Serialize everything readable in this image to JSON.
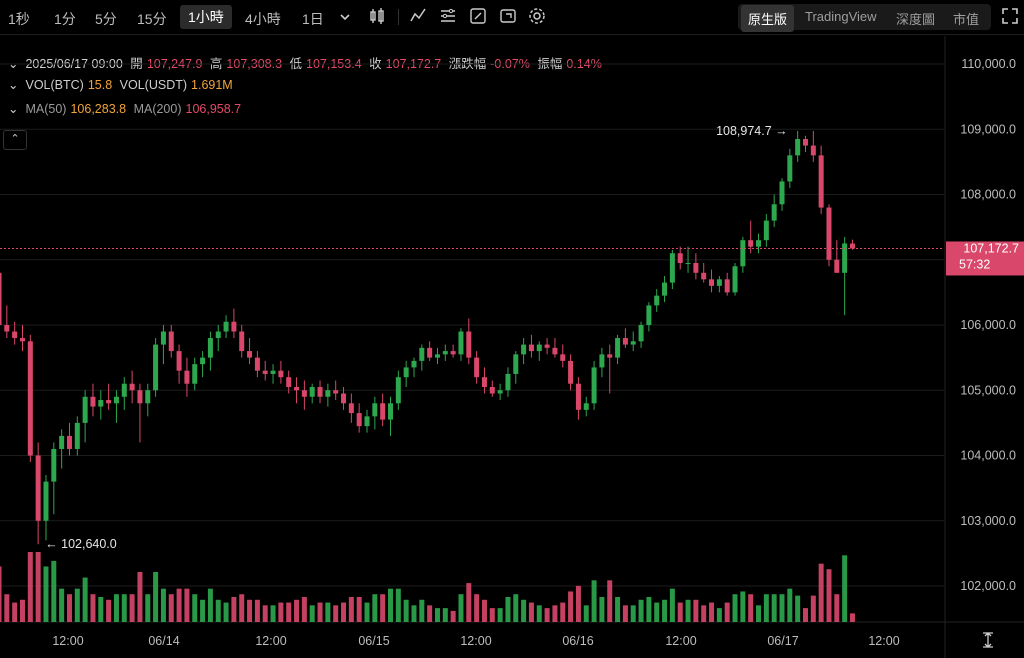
{
  "toolbar": {
    "intervals": [
      "1秒",
      "1分",
      "5分",
      "15分",
      "1小時",
      "4小時",
      "1日"
    ],
    "active_interval": "1小時",
    "views": [
      "原生版",
      "TradingView",
      "深度圖",
      "市值"
    ],
    "active_view": "原生版"
  },
  "info": {
    "datetime": "2025/06/17 09:00",
    "open_label": "開",
    "open": "107,247.9",
    "high_label": "高",
    "high": "107,308.3",
    "low_label": "低",
    "low": "107,153.4",
    "close_label": "收",
    "close": "107,172.7",
    "change_label": "漲跌幅",
    "change": "-0.07%",
    "amp_label": "振幅",
    "amp": "0.14%",
    "vol_btc_label": "VOL(BTC)",
    "vol_btc": "15.8",
    "vol_usdt_label": "VOL(USDT)",
    "vol_usdt": "1.691M",
    "ma50_label": "MA(50)",
    "ma50": "106,283.8",
    "ma200_label": "MA(200)",
    "ma200": "106,958.7"
  },
  "colors": {
    "up": "#2ea84f",
    "down": "#d9486b",
    "bg": "#000000",
    "grid": "#1c1c1c",
    "price_tag": "#d9486b"
  },
  "chart_data": {
    "type": "candlestick",
    "y_ticks": [
      "110,000.0",
      "109,000.0",
      "108,000.0",
      "107,000.0",
      "106,000.0",
      "105,000.0",
      "104,000.0",
      "103,000.0",
      "102,000.0"
    ],
    "y_tick_values": [
      110000,
      109000,
      108000,
      107000,
      106000,
      105000,
      104000,
      103000,
      102000
    ],
    "x_ticks": [
      "12:00",
      "06/14",
      "12:00",
      "06/15",
      "12:00",
      "06/16",
      "12:00",
      "06/17",
      "12:00"
    ],
    "last_price": "107,172.7",
    "countdown": "57:32",
    "max_label": "108,974.7",
    "min_label": "102,640.0",
    "ylim": [
      101700,
      110300
    ],
    "candles": [
      {
        "o": 106800,
        "h": 106900,
        "l": 105900,
        "c": 106000
      },
      {
        "o": 106000,
        "h": 106300,
        "l": 105800,
        "c": 105900
      },
      {
        "o": 105900,
        "h": 106050,
        "l": 105700,
        "c": 105800
      },
      {
        "o": 105800,
        "h": 106000,
        "l": 105600,
        "c": 105750
      },
      {
        "o": 105750,
        "h": 105850,
        "l": 103900,
        "c": 104000
      },
      {
        "o": 104000,
        "h": 104200,
        "l": 102640,
        "c": 103000
      },
      {
        "o": 103000,
        "h": 103700,
        "l": 102700,
        "c": 103600
      },
      {
        "o": 103600,
        "h": 104200,
        "l": 103100,
        "c": 104100
      },
      {
        "o": 104100,
        "h": 104400,
        "l": 103800,
        "c": 104300
      },
      {
        "o": 104300,
        "h": 104500,
        "l": 104000,
        "c": 104100
      },
      {
        "o": 104100,
        "h": 104600,
        "l": 104000,
        "c": 104500
      },
      {
        "o": 104500,
        "h": 105000,
        "l": 104200,
        "c": 104900
      },
      {
        "o": 104900,
        "h": 105100,
        "l": 104600,
        "c": 104750
      },
      {
        "o": 104750,
        "h": 105000,
        "l": 104550,
        "c": 104850
      },
      {
        "o": 104850,
        "h": 105100,
        "l": 104700,
        "c": 104800
      },
      {
        "o": 104800,
        "h": 105000,
        "l": 104500,
        "c": 104900
      },
      {
        "o": 104900,
        "h": 105200,
        "l": 104700,
        "c": 105100
      },
      {
        "o": 105100,
        "h": 105300,
        "l": 104800,
        "c": 105000
      },
      {
        "o": 105000,
        "h": 105100,
        "l": 104200,
        "c": 104800
      },
      {
        "o": 104800,
        "h": 105100,
        "l": 104600,
        "c": 105000
      },
      {
        "o": 105000,
        "h": 105800,
        "l": 104900,
        "c": 105700
      },
      {
        "o": 105700,
        "h": 106000,
        "l": 105400,
        "c": 105900
      },
      {
        "o": 105900,
        "h": 106000,
        "l": 105500,
        "c": 105600
      },
      {
        "o": 105600,
        "h": 105700,
        "l": 105100,
        "c": 105300
      },
      {
        "o": 105300,
        "h": 105500,
        "l": 104900,
        "c": 105100
      },
      {
        "o": 105100,
        "h": 105500,
        "l": 105000,
        "c": 105400
      },
      {
        "o": 105400,
        "h": 105600,
        "l": 105200,
        "c": 105500
      },
      {
        "o": 105500,
        "h": 105900,
        "l": 105300,
        "c": 105800
      },
      {
        "o": 105800,
        "h": 106000,
        "l": 105600,
        "c": 105900
      },
      {
        "o": 105900,
        "h": 106150,
        "l": 105800,
        "c": 106050
      },
      {
        "o": 106050,
        "h": 106250,
        "l": 105800,
        "c": 105900
      },
      {
        "o": 105900,
        "h": 106000,
        "l": 105500,
        "c": 105600
      },
      {
        "o": 105600,
        "h": 105800,
        "l": 105400,
        "c": 105500
      },
      {
        "o": 105500,
        "h": 105600,
        "l": 105200,
        "c": 105300
      },
      {
        "o": 105300,
        "h": 105450,
        "l": 105150,
        "c": 105250
      },
      {
        "o": 105250,
        "h": 105400,
        "l": 105100,
        "c": 105300
      },
      {
        "o": 105300,
        "h": 105450,
        "l": 105100,
        "c": 105200
      },
      {
        "o": 105200,
        "h": 105300,
        "l": 104950,
        "c": 105050
      },
      {
        "o": 105050,
        "h": 105200,
        "l": 104800,
        "c": 105000
      },
      {
        "o": 105000,
        "h": 105150,
        "l": 104700,
        "c": 104900
      },
      {
        "o": 104900,
        "h": 105100,
        "l": 104800,
        "c": 105050
      },
      {
        "o": 105050,
        "h": 105150,
        "l": 104800,
        "c": 104900
      },
      {
        "o": 104900,
        "h": 105100,
        "l": 104750,
        "c": 105000
      },
      {
        "o": 105000,
        "h": 105150,
        "l": 104850,
        "c": 104950
      },
      {
        "o": 104950,
        "h": 105050,
        "l": 104700,
        "c": 104800
      },
      {
        "o": 104800,
        "h": 104950,
        "l": 104500,
        "c": 104650
      },
      {
        "o": 104650,
        "h": 104800,
        "l": 104350,
        "c": 104450
      },
      {
        "o": 104450,
        "h": 104700,
        "l": 104350,
        "c": 104600
      },
      {
        "o": 104600,
        "h": 104900,
        "l": 104400,
        "c": 104800
      },
      {
        "o": 104800,
        "h": 104950,
        "l": 104450,
        "c": 104550
      },
      {
        "o": 104550,
        "h": 104900,
        "l": 104300,
        "c": 104800
      },
      {
        "o": 104800,
        "h": 105300,
        "l": 104700,
        "c": 105200
      },
      {
        "o": 105200,
        "h": 105450,
        "l": 105050,
        "c": 105350
      },
      {
        "o": 105350,
        "h": 105500,
        "l": 105200,
        "c": 105450
      },
      {
        "o": 105450,
        "h": 105700,
        "l": 105300,
        "c": 105650
      },
      {
        "o": 105650,
        "h": 105750,
        "l": 105450,
        "c": 105500
      },
      {
        "o": 105500,
        "h": 105650,
        "l": 105400,
        "c": 105550
      },
      {
        "o": 105550,
        "h": 105700,
        "l": 105450,
        "c": 105600
      },
      {
        "o": 105600,
        "h": 105700,
        "l": 105500,
        "c": 105550
      },
      {
        "o": 105550,
        "h": 105950,
        "l": 105450,
        "c": 105900
      },
      {
        "o": 105900,
        "h": 106100,
        "l": 105400,
        "c": 105500
      },
      {
        "o": 105500,
        "h": 105600,
        "l": 105100,
        "c": 105200
      },
      {
        "o": 105200,
        "h": 105350,
        "l": 104950,
        "c": 105050
      },
      {
        "o": 105050,
        "h": 105150,
        "l": 104900,
        "c": 104950
      },
      {
        "o": 104950,
        "h": 105100,
        "l": 104850,
        "c": 105000
      },
      {
        "o": 105000,
        "h": 105350,
        "l": 104900,
        "c": 105250
      },
      {
        "o": 105250,
        "h": 105600,
        "l": 105100,
        "c": 105550
      },
      {
        "o": 105550,
        "h": 105800,
        "l": 105400,
        "c": 105700
      },
      {
        "o": 105700,
        "h": 105850,
        "l": 105500,
        "c": 105600
      },
      {
        "o": 105600,
        "h": 105750,
        "l": 105450,
        "c": 105700
      },
      {
        "o": 105700,
        "h": 105800,
        "l": 105550,
        "c": 105650
      },
      {
        "o": 105650,
        "h": 105800,
        "l": 105500,
        "c": 105550
      },
      {
        "o": 105550,
        "h": 105700,
        "l": 105350,
        "c": 105450
      },
      {
        "o": 105450,
        "h": 105550,
        "l": 105000,
        "c": 105100
      },
      {
        "o": 105100,
        "h": 105200,
        "l": 104550,
        "c": 104700
      },
      {
        "o": 104700,
        "h": 104900,
        "l": 104600,
        "c": 104800
      },
      {
        "o": 104800,
        "h": 105450,
        "l": 104700,
        "c": 105350
      },
      {
        "o": 105350,
        "h": 105650,
        "l": 105200,
        "c": 105550
      },
      {
        "o": 105550,
        "h": 105700,
        "l": 104950,
        "c": 105500
      },
      {
        "o": 105500,
        "h": 105850,
        "l": 105400,
        "c": 105800
      },
      {
        "o": 105800,
        "h": 105950,
        "l": 105650,
        "c": 105700
      },
      {
        "o": 105700,
        "h": 105900,
        "l": 105600,
        "c": 105750
      },
      {
        "o": 105750,
        "h": 106050,
        "l": 105650,
        "c": 106000
      },
      {
        "o": 106000,
        "h": 106350,
        "l": 105900,
        "c": 106300
      },
      {
        "o": 106300,
        "h": 106550,
        "l": 106200,
        "c": 106450
      },
      {
        "o": 106450,
        "h": 106750,
        "l": 106350,
        "c": 106650
      },
      {
        "o": 106650,
        "h": 107150,
        "l": 106550,
        "c": 107100
      },
      {
        "o": 107100,
        "h": 107200,
        "l": 106850,
        "c": 106950
      },
      {
        "o": 106950,
        "h": 107200,
        "l": 106800,
        "c": 106950
      },
      {
        "o": 106950,
        "h": 107100,
        "l": 106700,
        "c": 106800
      },
      {
        "o": 106800,
        "h": 106950,
        "l": 106650,
        "c": 106700
      },
      {
        "o": 106700,
        "h": 106850,
        "l": 106500,
        "c": 106600
      },
      {
        "o": 106600,
        "h": 106750,
        "l": 106500,
        "c": 106700
      },
      {
        "o": 106700,
        "h": 106800,
        "l": 106450,
        "c": 106500
      },
      {
        "o": 106500,
        "h": 106950,
        "l": 106450,
        "c": 106900
      },
      {
        "o": 106900,
        "h": 107350,
        "l": 106800,
        "c": 107300
      },
      {
        "o": 107300,
        "h": 107600,
        "l": 107100,
        "c": 107200
      },
      {
        "o": 107200,
        "h": 107400,
        "l": 107100,
        "c": 107300
      },
      {
        "o": 107300,
        "h": 107700,
        "l": 107200,
        "c": 107600
      },
      {
        "o": 107600,
        "h": 108000,
        "l": 107500,
        "c": 107850
      },
      {
        "o": 107850,
        "h": 108250,
        "l": 107750,
        "c": 108200
      },
      {
        "o": 108200,
        "h": 108700,
        "l": 108100,
        "c": 108600
      },
      {
        "o": 108600,
        "h": 108974.7,
        "l": 108500,
        "c": 108850
      },
      {
        "o": 108850,
        "h": 108900,
        "l": 108650,
        "c": 108750
      },
      {
        "o": 108750,
        "h": 108974.7,
        "l": 108500,
        "c": 108600
      },
      {
        "o": 108600,
        "h": 108750,
        "l": 107700,
        "c": 107800
      },
      {
        "o": 107800,
        "h": 107850,
        "l": 106900,
        "c": 107000
      },
      {
        "o": 107000,
        "h": 107300,
        "l": 106800,
        "c": 106800
      },
      {
        "o": 106800,
        "h": 107350,
        "l": 106150,
        "c": 107250
      },
      {
        "o": 107247.9,
        "h": 107308.3,
        "l": 107153.4,
        "c": 107172.7
      }
    ]
  }
}
